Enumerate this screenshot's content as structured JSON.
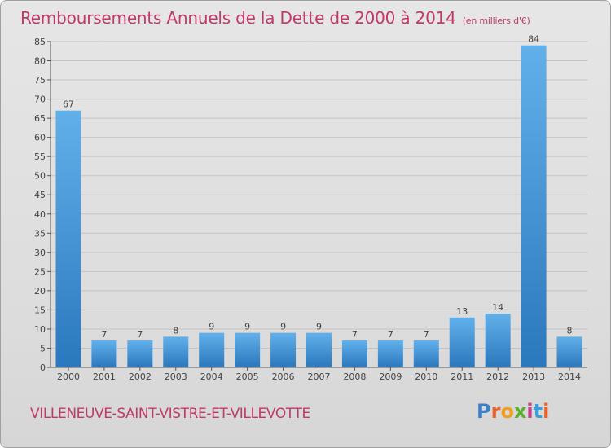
{
  "title": "Remboursements Annuels de la Dette de 2000 à 2014",
  "subtitle": "(en milliers d'€)",
  "commune": "VILLENEUVE-SAINT-VISTRE-ET-VILLEVOTTE",
  "logo": {
    "text": "Proxiti",
    "letter_colors": [
      "#3a7fc8",
      "#e8642a",
      "#f0a020",
      "#5cb030",
      "#d03a8a",
      "#3a9fd8",
      "#e8642a"
    ]
  },
  "colors": {
    "title": "#c0396b",
    "bar_light": "#62b0ea",
    "bar_dark": "#2a78bd",
    "axis": "#555555",
    "grid": "#c4c4c4"
  },
  "chart_data": {
    "type": "bar",
    "categories": [
      "2000",
      "2001",
      "2002",
      "2003",
      "2004",
      "2005",
      "2006",
      "2007",
      "2008",
      "2009",
      "2010",
      "2011",
      "2012",
      "2013",
      "2014"
    ],
    "values": [
      67,
      7,
      7,
      8,
      9,
      9,
      9,
      9,
      7,
      7,
      7,
      13,
      14,
      84,
      8
    ],
    "data_labels": [
      "67",
      "7",
      "7",
      "8",
      "9",
      "9",
      "9",
      "9",
      "7",
      "7",
      "7",
      "13",
      "14",
      "84",
      "8"
    ],
    "ylim": [
      0,
      85
    ],
    "yticks": [
      0,
      5,
      10,
      15,
      20,
      25,
      30,
      35,
      40,
      45,
      50,
      55,
      60,
      65,
      70,
      75,
      80,
      85
    ],
    "grid": true,
    "xlabel": "",
    "ylabel": ""
  }
}
